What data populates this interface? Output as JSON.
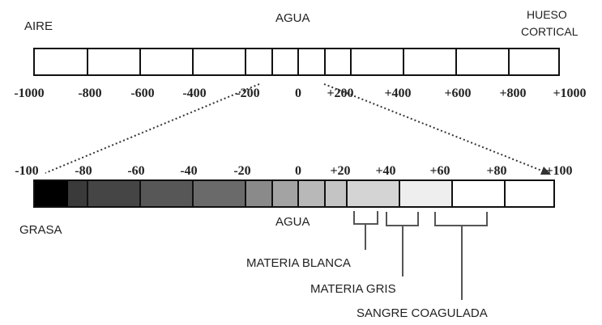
{
  "top_scale": {
    "labels": {
      "air": "AIRE",
      "water": "AGUA",
      "cortical_bone_line1": "HUESO",
      "cortical_bone_line2": "CORTICAL"
    },
    "ticks": [
      "-1000",
      "-800",
      "-600",
      "-400",
      "-200",
      "0",
      "+200",
      "+400",
      "+600",
      "+800",
      "+1000"
    ]
  },
  "bottom_scale": {
    "ticks": [
      "-100",
      "-80",
      "-60",
      "-40",
      "-20",
      "0",
      "+20",
      "+40",
      "+60",
      "+80",
      "+100"
    ],
    "gradient": {
      "start_color": "#000000",
      "end_color": "#ffffff"
    },
    "labels": {
      "fat": "GRASA",
      "water": "AGUA",
      "white_matter": "MATERIA BLANCA",
      "gray_matter": "MATERIA GRIS",
      "clotted_blood": "SANGRE COAGULADA"
    }
  }
}
